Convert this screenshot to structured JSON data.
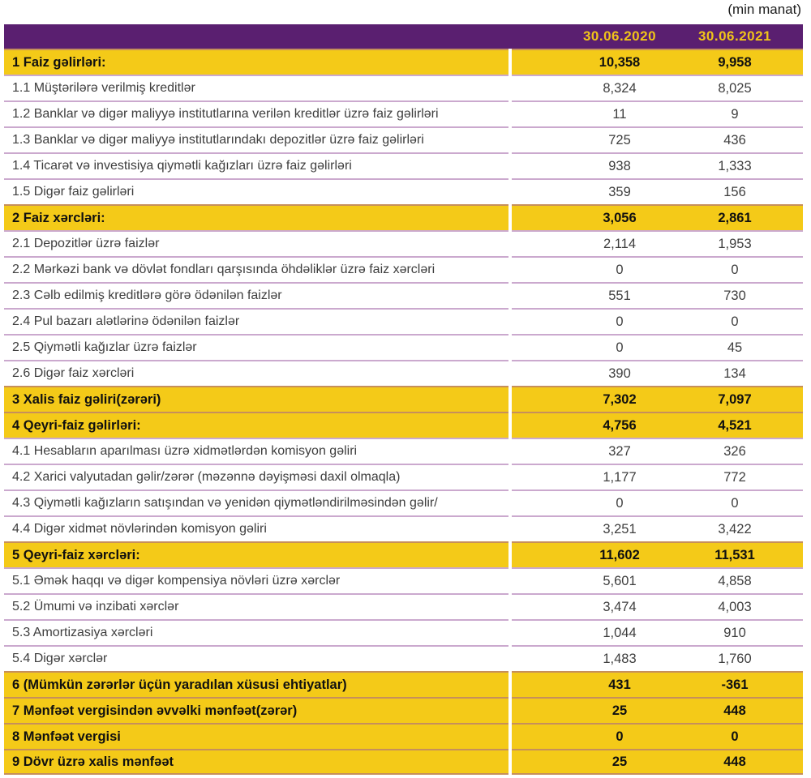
{
  "unit_label": "(min manat)",
  "header": {
    "col2020": "30.06.2020",
    "col2021": "30.06.2021"
  },
  "colors": {
    "header_background": "#5A1F70",
    "header_text": "#F0C419",
    "highlight_row": "#F4CA18",
    "separator_line": "#CBA3CF",
    "body_text": "#3E3E3E"
  },
  "rows": [
    {
      "label": "1 Faiz gəlirləri:",
      "v2020": "10,358",
      "v2021": "9,958",
      "highlight": true
    },
    {
      "label": "1.1 Müştərilərə verilmiş kreditlər",
      "v2020": "8,324",
      "v2021": "8,025",
      "highlight": false
    },
    {
      "label": "1.2 Banklar və digər maliyyə institutlarına verilən kreditlər üzrə faiz gəlirləri",
      "v2020": "11",
      "v2021": "9",
      "highlight": false
    },
    {
      "label": "1.3 Banklar və digər maliyyə institutlarındakı depozitlər üzrə faiz gəlirləri",
      "v2020": "725",
      "v2021": "436",
      "highlight": false
    },
    {
      "label": "1.4 Ticarət və investisiya qiymətli kağızları üzrə faiz gəlirləri",
      "v2020": "938",
      "v2021": "1,333",
      "highlight": false
    },
    {
      "label": "1.5 Digər faiz gəlirləri",
      "v2020": "359",
      "v2021": "156",
      "highlight": false
    },
    {
      "label": "2 Faiz xərcləri:",
      "v2020": "3,056",
      "v2021": "2,861",
      "highlight": true
    },
    {
      "label": "2.1 Depozitlər üzrə faizlər",
      "v2020": "2,114",
      "v2021": "1,953",
      "highlight": false
    },
    {
      "label": "2.2 Mərkəzi bank və dövlət fondları qarşısında öhdəliklər üzrə faiz xərcləri",
      "v2020": "0",
      "v2021": "0",
      "highlight": false
    },
    {
      "label": "2.3 Cəlb edilmiş kreditlərə görə ödənilən faizlər",
      "v2020": "551",
      "v2021": "730",
      "highlight": false
    },
    {
      "label": "2.4 Pul bazarı alətlərinə ödənilən faizlər",
      "v2020": "0",
      "v2021": "0",
      "highlight": false
    },
    {
      "label": "2.5 Qiymətli kağızlar üzrə faizlər",
      "v2020": "0",
      "v2021": "45",
      "highlight": false
    },
    {
      "label": "2.6 Digər faiz xərcləri",
      "v2020": "390",
      "v2021": "134",
      "highlight": false
    },
    {
      "label": "3 Xalis faiz gəliri(zərəri)",
      "v2020": "7,302",
      "v2021": "7,097",
      "highlight": true
    },
    {
      "label": "4 Qeyri-faiz gəlirləri:",
      "v2020": "4,756",
      "v2021": "4,521",
      "highlight": true
    },
    {
      "label": "4.1 Hesabların aparılması üzrə xidmətlərdən komisyon gəliri",
      "v2020": "327",
      "v2021": "326",
      "highlight": false
    },
    {
      "label": "4.2 Xarici valyutadan gəlir/zərər (məzənnə dəyişməsi daxil olmaqla)",
      "v2020": "1,177",
      "v2021": "772",
      "highlight": false
    },
    {
      "label": "4.3 Qiymətli kağızların satışından və yenidən qiymətləndirilməsindən gəlir/",
      "v2020": "0",
      "v2021": "0",
      "highlight": false
    },
    {
      "label": "4.4 Digər xidmət növlərindən komisyon gəliri",
      "v2020": "3,251",
      "v2021": "3,422",
      "highlight": false
    },
    {
      "label": "5 Qeyri-faiz xərcləri:",
      "v2020": "11,602",
      "v2021": "11,531",
      "highlight": true
    },
    {
      "label": "5.1 Əmək haqqı və digər kompensiya növləri üzrə xərclər",
      "v2020": "5,601",
      "v2021": "4,858",
      "highlight": false
    },
    {
      "label": "5.2 Ümumi və inzibati xərclər",
      "v2020": "3,474",
      "v2021": "4,003",
      "highlight": false
    },
    {
      "label": "5.3 Amortizasiya xərcləri",
      "v2020": "1,044",
      "v2021": "910",
      "highlight": false
    },
    {
      "label": "5.4 Digər xərclər",
      "v2020": "1,483",
      "v2021": "1,760",
      "highlight": false
    },
    {
      "label": "6 (Mümkün zərərlər üçün yaradılan xüsusi ehtiyatlar)",
      "v2020": "431",
      "v2021": "-361",
      "highlight": true
    },
    {
      "label": "7 Mənfəət vergisindən əvvəlki mənfəət(zərər)",
      "v2020": "25",
      "v2021": "448",
      "highlight": true
    },
    {
      "label": "8 Mənfəət vergisi",
      "v2020": "0",
      "v2021": "0",
      "highlight": true
    },
    {
      "label": "9 Dövr üzrə xalis mənfəət",
      "v2020": "25",
      "v2021": "448",
      "highlight": true
    }
  ]
}
